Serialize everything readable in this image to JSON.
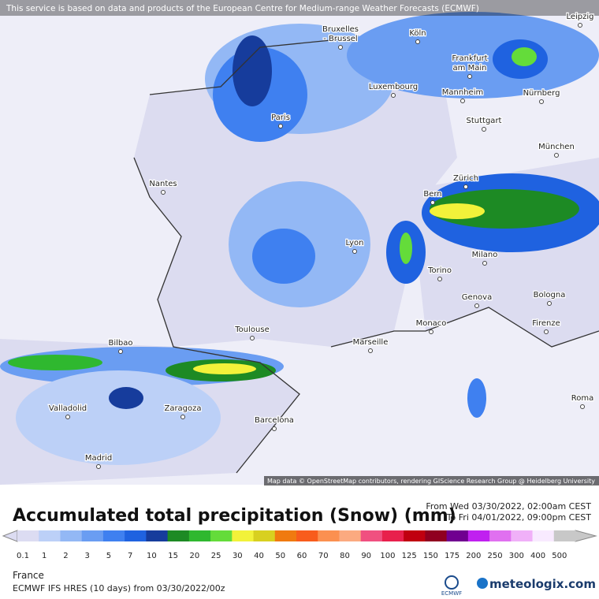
{
  "notice": "This service is based on data and products of the European Centre for Medium-range Weather Forecasts (ECMWF)",
  "attribution": "Map data © OpenStreetMap contributors, rendering GIScience Research Group @ Heidelberg University",
  "cities": [
    {
      "lines": [
        "Bruxelles",
        "- Brussel"
      ]
    },
    {
      "lines": [
        "Köln"
      ]
    },
    {
      "lines": [
        "Leipzig"
      ]
    },
    {
      "lines": [
        "Frankfurt",
        "am Main"
      ]
    },
    {
      "lines": [
        "Luxembourg"
      ]
    },
    {
      "lines": [
        "Mannheim"
      ]
    },
    {
      "lines": [
        "Nürnberg"
      ]
    },
    {
      "lines": [
        "Paris"
      ]
    },
    {
      "lines": [
        "Stuttgart"
      ]
    },
    {
      "lines": [
        "München"
      ]
    },
    {
      "lines": [
        "Nantes"
      ]
    },
    {
      "lines": [
        "Zürich"
      ]
    },
    {
      "lines": [
        "Bern"
      ]
    },
    {
      "lines": [
        "Lyon"
      ]
    },
    {
      "lines": [
        "Milano"
      ]
    },
    {
      "lines": [
        "Torino"
      ]
    },
    {
      "lines": [
        "Genova"
      ]
    },
    {
      "lines": [
        "Bologna"
      ]
    },
    {
      "lines": [
        "Monaco"
      ]
    },
    {
      "lines": [
        "Firenze"
      ]
    },
    {
      "lines": [
        "Toulouse"
      ]
    },
    {
      "lines": [
        "Marseille"
      ]
    },
    {
      "lines": [
        "Bilbao"
      ]
    },
    {
      "lines": [
        "Valladolid"
      ]
    },
    {
      "lines": [
        "Zaragoza"
      ]
    },
    {
      "lines": [
        "Roma"
      ]
    },
    {
      "lines": [
        "Barcelona"
      ]
    },
    {
      "lines": [
        "Madrid"
      ]
    }
  ],
  "legend": {
    "title": "Accumulated total precipitation (Snow) (mm)",
    "from": "From Wed 03/30/2022, 02:00am CEST",
    "to": "To Fri 04/01/2022, 09:00pm CEST",
    "steps": [
      {
        "value": 0.1,
        "color": "#dcdcf2"
      },
      {
        "value": 1,
        "color": "#bcd0f7"
      },
      {
        "value": 2,
        "color": "#93b8f5"
      },
      {
        "value": 3,
        "color": "#6a9df2"
      },
      {
        "value": 5,
        "color": "#3f80f0"
      },
      {
        "value": 7,
        "color": "#1f62e0"
      },
      {
        "value": 10,
        "color": "#163c9c"
      },
      {
        "value": 15,
        "color": "#1d8a24"
      },
      {
        "value": 20,
        "color": "#2fb82f"
      },
      {
        "value": 25,
        "color": "#64dc3a"
      },
      {
        "value": 30,
        "color": "#f2f23a"
      },
      {
        "value": 40,
        "color": "#d8d020"
      },
      {
        "value": 50,
        "color": "#f07a10"
      },
      {
        "value": 60,
        "color": "#f85c1c"
      },
      {
        "value": 70,
        "color": "#fb9050"
      },
      {
        "value": 80,
        "color": "#fbaa80"
      },
      {
        "value": 90,
        "color": "#f05080"
      },
      {
        "value": 100,
        "color": "#e8204c"
      },
      {
        "value": 125,
        "color": "#c00010"
      },
      {
        "value": 150,
        "color": "#900020"
      },
      {
        "value": 175,
        "color": "#700090"
      },
      {
        "value": 200,
        "color": "#c020f0"
      },
      {
        "value": 250,
        "color": "#e070f0"
      },
      {
        "value": 300,
        "color": "#f0b0f8"
      },
      {
        "value": 400,
        "color": "#f8eaff"
      },
      {
        "value": 500,
        "color": "#c8c8c8"
      }
    ]
  },
  "footer": {
    "region": "France",
    "model": "ECMWF IFS HRES (10 days) from 03/30/2022/00z",
    "ecmwf": "ECMWF",
    "brand": "meteologix.com"
  }
}
